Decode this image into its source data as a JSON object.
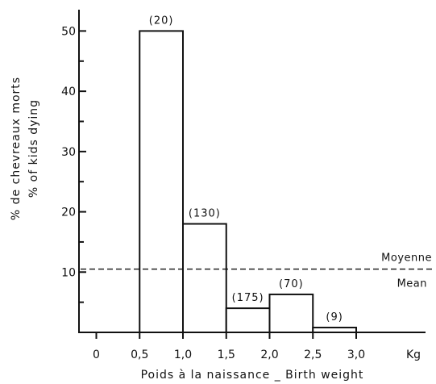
{
  "chart_data": {
    "type": "bar",
    "xlabel": "Poids à la naissance _ Birth weight",
    "ylabel_fr": "% de chevreaux morts",
    "ylabel_en": "% of kids dying",
    "x_unit": "Kg",
    "x_ticks": [
      {
        "value": 0,
        "label": "0"
      },
      {
        "value": 0.5,
        "label": "0,5"
      },
      {
        "value": 1.0,
        "label": "1,0"
      },
      {
        "value": 1.5,
        "label": "1,5"
      },
      {
        "value": 2.0,
        "label": "2,0"
      },
      {
        "value": 2.5,
        "label": "2,5"
      },
      {
        "value": 3.0,
        "label": "3,0"
      }
    ],
    "y_ticks": [
      {
        "value": 10,
        "label": "10"
      },
      {
        "value": 20,
        "label": "20"
      },
      {
        "value": 30,
        "label": "30"
      },
      {
        "value": 40,
        "label": "40"
      },
      {
        "value": 50,
        "label": "50"
      }
    ],
    "xlim": [
      -0.2,
      3.8
    ],
    "ylim": [
      0,
      53
    ],
    "bars": [
      {
        "x0": 0.5,
        "x1": 1.0,
        "value": 50,
        "label": "(20)"
      },
      {
        "x0": 1.0,
        "x1": 1.5,
        "value": 18,
        "label": "(130)"
      },
      {
        "x0": 1.5,
        "x1": 2.0,
        "value": 4,
        "label": "(175)"
      },
      {
        "x0": 2.0,
        "x1": 2.5,
        "value": 6.3,
        "label": "(70)"
      },
      {
        "x0": 2.5,
        "x1": 3.0,
        "value": 0.8,
        "label": "(9)"
      }
    ],
    "reference_line": {
      "value": 10.5,
      "label_fr": "Moyenne",
      "label_en": "Mean"
    }
  }
}
